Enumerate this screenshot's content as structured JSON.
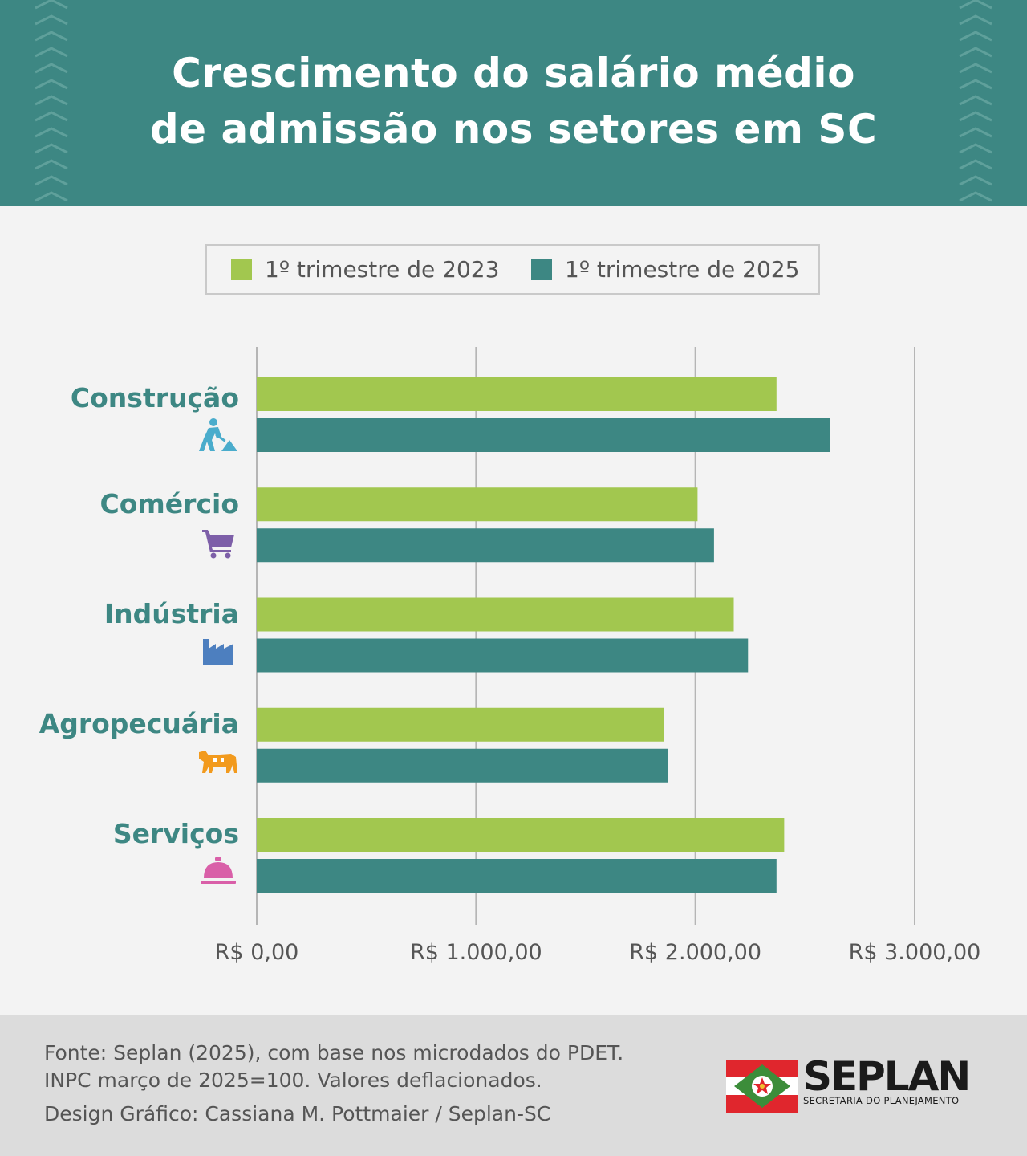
{
  "header": {
    "title_line1": "Crescimento do salário médio",
    "title_line2": "de admissão nos setores em SC",
    "background_color": "#3d8783"
  },
  "legend": {
    "items": [
      {
        "label": "1º trimestre de 2023",
        "color": "#a2c74f"
      },
      {
        "label": "1º trimestre de 2025",
        "color": "#3d8783"
      }
    ]
  },
  "chart_data": {
    "type": "bar",
    "orientation": "horizontal",
    "categories": [
      "Construção",
      "Comércio",
      "Indústria",
      "Agropecuária",
      "Serviços"
    ],
    "category_icons": [
      "construction-worker-icon",
      "shopping-cart-icon",
      "factory-icon",
      "cow-icon",
      "service-bell-icon"
    ],
    "category_icon_colors": [
      "#4aaccc",
      "#7d5fa8",
      "#4d7fbf",
      "#f29a1d",
      "#d95fa8"
    ],
    "series": [
      {
        "name": "1º trimestre de 2023",
        "color": "#a2c74f",
        "values": [
          2370,
          2010,
          2175,
          1855,
          2405
        ]
      },
      {
        "name": "1º trimestre de 2025",
        "color": "#3d8783",
        "values": [
          2615,
          2085,
          2240,
          1875,
          2370
        ]
      }
    ],
    "xlim": [
      0,
      3000
    ],
    "xticks": [
      0,
      1000,
      2000,
      3000
    ],
    "xtick_labels": [
      "R$ 0,00",
      "R$ 1.000,00",
      "R$ 2.000,00",
      "R$ 3.000,00"
    ],
    "grid": true,
    "legend_position": "top-center"
  },
  "footer": {
    "source_line1": "Fonte: Seplan (2025), com base nos microdados do PDET.",
    "source_line2": "INPC março de 2025=100. Valores deflacionados.",
    "design_credit": "Design Gráfico: Cassiana M. Pottmaier / Seplan-SC",
    "logo_name": "SEPLAN",
    "logo_subtitle": "SECRETARIA DO PLANEJAMENTO"
  }
}
